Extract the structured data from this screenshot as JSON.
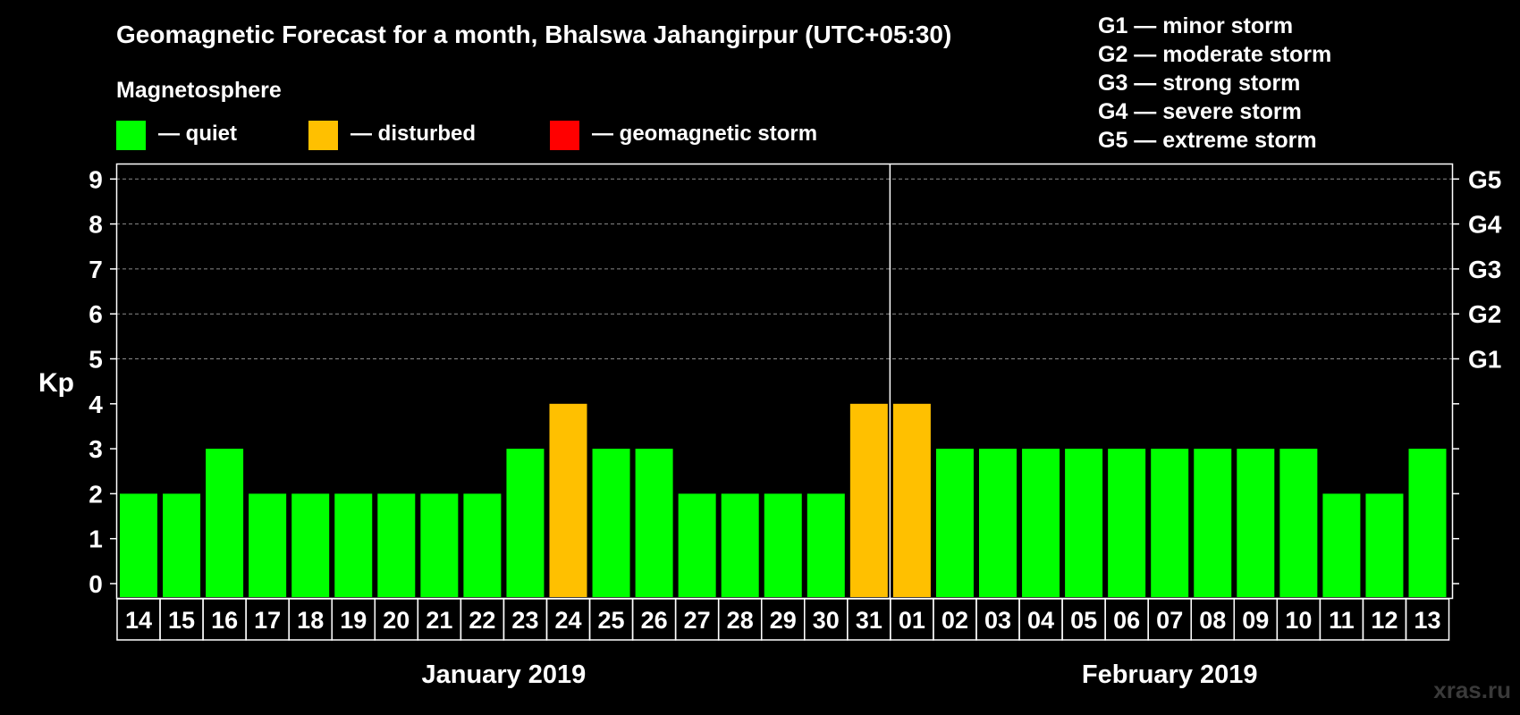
{
  "chart_data": {
    "type": "bar",
    "title": "Geomagnetic Forecast for a month, Bhalswa Jahangirpur (UTC+05:30)",
    "ylabel": "Kp",
    "ylim": [
      0,
      9
    ],
    "yticks": [
      "0",
      "1",
      "2",
      "3",
      "4",
      "5",
      "6",
      "7",
      "8",
      "9"
    ],
    "grid": true,
    "legend": {
      "heading": "Magnetosphere",
      "items": [
        {
          "key": "quiet",
          "label": "— quiet",
          "color": "#00ff00"
        },
        {
          "key": "disturbed",
          "label": "— disturbed",
          "color": "#ffc000"
        },
        {
          "key": "storm",
          "label": "— geomagnetic storm",
          "color": "#ff0000"
        }
      ]
    },
    "storm_scale": [
      {
        "level": "G1",
        "kp": 5,
        "description": "G1 — minor storm"
      },
      {
        "level": "G2",
        "kp": 6,
        "description": "G2 — moderate storm"
      },
      {
        "level": "G3",
        "kp": 7,
        "description": "G3 — strong storm"
      },
      {
        "level": "G4",
        "kp": 8,
        "description": "G4 — severe storm"
      },
      {
        "level": "G5",
        "kp": 9,
        "description": "G5 — extreme storm"
      }
    ],
    "months": [
      {
        "label": "January 2019",
        "day_count": 18
      },
      {
        "label": "February 2019",
        "day_count": 13
      }
    ],
    "categories": [
      "14",
      "15",
      "16",
      "17",
      "18",
      "19",
      "20",
      "21",
      "22",
      "23",
      "24",
      "25",
      "26",
      "27",
      "28",
      "29",
      "30",
      "31",
      "01",
      "02",
      "03",
      "04",
      "05",
      "06",
      "07",
      "08",
      "09",
      "10",
      "11",
      "12",
      "13"
    ],
    "values": [
      2,
      2,
      3,
      2,
      2,
      2,
      2,
      2,
      2,
      3,
      4,
      3,
      3,
      2,
      2,
      2,
      2,
      4,
      4,
      3,
      3,
      3,
      3,
      3,
      3,
      3,
      3,
      3,
      2,
      2,
      3
    ],
    "status": [
      "quiet",
      "quiet",
      "quiet",
      "quiet",
      "quiet",
      "quiet",
      "quiet",
      "quiet",
      "quiet",
      "quiet",
      "disturbed",
      "quiet",
      "quiet",
      "quiet",
      "quiet",
      "quiet",
      "quiet",
      "disturbed",
      "disturbed",
      "quiet",
      "quiet",
      "quiet",
      "quiet",
      "quiet",
      "quiet",
      "quiet",
      "quiet",
      "quiet",
      "quiet",
      "quiet",
      "quiet"
    ]
  },
  "watermark": "xras.ru"
}
